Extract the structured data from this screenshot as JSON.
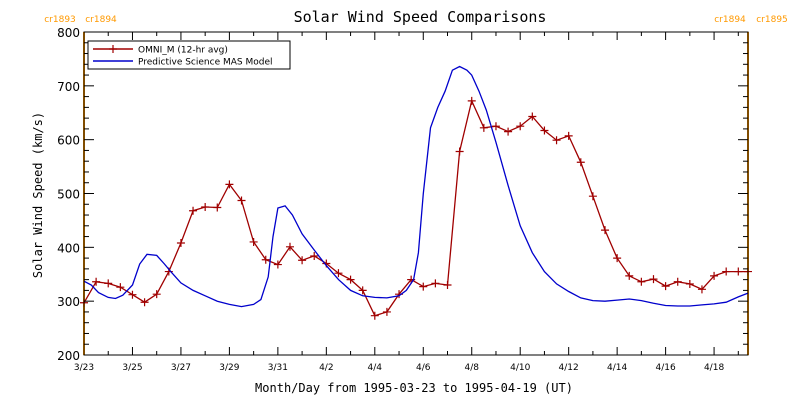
{
  "chart_data": {
    "type": "line",
    "title": "Solar Wind Speed Comparisons",
    "xlabel": "Month/Day from 1995-03-23 to 1995-04-19 (UT)",
    "ylabel": "Solar Wind Speed (km/s)",
    "xlim": [
      0,
      27.4
    ],
    "ylim": [
      200,
      800
    ],
    "y_ticks": [
      200,
      300,
      400,
      500,
      600,
      700,
      800
    ],
    "x_ticks": [
      {
        "day": 0,
        "label": "3/23"
      },
      {
        "day": 2,
        "label": "3/25"
      },
      {
        "day": 4,
        "label": "3/27"
      },
      {
        "day": 6,
        "label": "3/29"
      },
      {
        "day": 8,
        "label": "3/31"
      },
      {
        "day": 10,
        "label": "4/2"
      },
      {
        "day": 12,
        "label": "4/4"
      },
      {
        "day": 14,
        "label": "4/6"
      },
      {
        "day": 16,
        "label": "4/8"
      },
      {
        "day": 18,
        "label": "4/10"
      },
      {
        "day": 20,
        "label": "4/12"
      },
      {
        "day": 22,
        "label": "4/14"
      },
      {
        "day": 24,
        "label": "4/16"
      },
      {
        "day": 26,
        "label": "4/18"
      }
    ],
    "legend_position": "top-left",
    "rotations": [
      {
        "day": 0,
        "left": "cr1893",
        "right": "cr1894"
      },
      {
        "day": 27.4,
        "left": "cr1894",
        "right": "cr1895"
      }
    ],
    "colors": {
      "omni": "#a00000",
      "mas": "#0000cc",
      "rotation": "#ff9900",
      "axis": "#000000"
    },
    "series": [
      {
        "name": "OMNI_M (12-hr avg)",
        "marker": "plus",
        "x": [
          0,
          0.5,
          1,
          1.5,
          2,
          2.5,
          3,
          3.5,
          4,
          4.5,
          5,
          5.5,
          6,
          6.5,
          7,
          7.5,
          8,
          8.5,
          9,
          9.5,
          10,
          10.5,
          11,
          11.5,
          12,
          12.5,
          13,
          13.5,
          14,
          14.5,
          15,
          15.5,
          16,
          16.5,
          17,
          17.5,
          18,
          18.5,
          19,
          19.5,
          20,
          20.5,
          21,
          21.5,
          22,
          22.5,
          23,
          23.5,
          24,
          24.5,
          25,
          25.5,
          26,
          26.5,
          27,
          27.4
        ],
        "values": [
          297,
          336,
          333,
          326,
          312,
          298,
          313,
          355,
          408,
          468,
          475,
          474,
          517,
          487,
          410,
          377,
          368,
          401,
          376,
          384,
          370,
          352,
          340,
          320,
          273,
          280,
          313,
          340,
          327,
          333,
          330,
          578,
          672,
          622,
          625,
          615,
          625,
          643,
          617,
          599,
          607,
          558,
          495,
          432,
          380,
          347,
          336,
          341,
          328,
          336,
          332,
          322,
          347,
          355,
          355,
          355
        ]
      },
      {
        "name": "Predictive Science MAS Model",
        "marker": "none",
        "x": [
          0,
          0.3,
          0.6,
          1,
          1.3,
          1.6,
          2,
          2.3,
          2.6,
          3,
          3.3,
          3.6,
          4,
          4.5,
          5,
          5.5,
          6,
          6.5,
          7,
          7.3,
          7.6,
          7.8,
          8,
          8.3,
          8.6,
          9,
          9.5,
          10,
          10.5,
          11,
          11.5,
          12,
          12.5,
          13,
          13.3,
          13.6,
          13.8,
          14,
          14.3,
          14.6,
          14.9,
          15.2,
          15.5,
          15.8,
          16,
          16.3,
          16.6,
          17,
          17.5,
          18,
          18.5,
          19,
          19.5,
          20,
          20.5,
          21,
          21.5,
          22,
          22.5,
          23,
          23.5,
          24,
          24.5,
          25,
          25.5,
          26,
          26.5,
          27,
          27.4
        ],
        "values": [
          337,
          330,
          316,
          307,
          305,
          311,
          330,
          369,
          387,
          385,
          370,
          354,
          334,
          320,
          310,
          300,
          294,
          290,
          294,
          303,
          345,
          420,
          473,
          477,
          460,
          425,
          395,
          366,
          340,
          320,
          310,
          307,
          306,
          310,
          320,
          340,
          390,
          500,
          622,
          660,
          690,
          729,
          736,
          729,
          720,
          690,
          655,
          595,
          515,
          440,
          390,
          355,
          332,
          318,
          306,
          301,
          300,
          302,
          304,
          301,
          296,
          292,
          291,
          291,
          293,
          295,
          298,
          308,
          315
        ]
      }
    ]
  }
}
